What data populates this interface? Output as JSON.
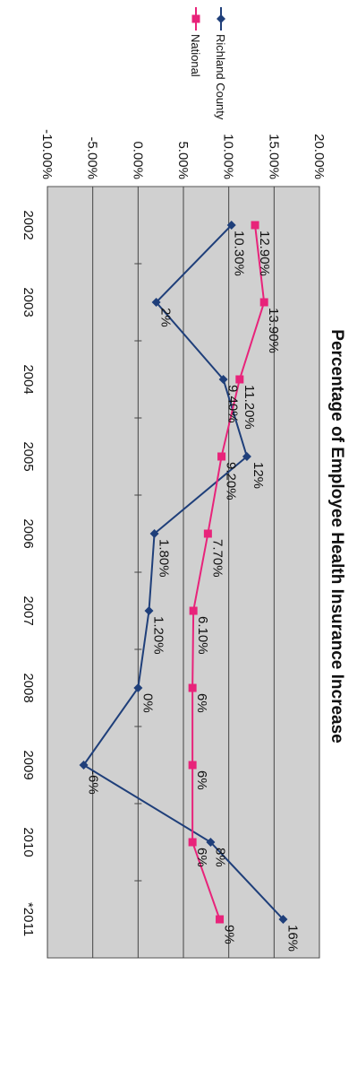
{
  "chart_data": {
    "type": "line",
    "title": "Percentage of Employee Health Insurance Increase",
    "categories": [
      "2002",
      "2003",
      "2004",
      "2005",
      "2006",
      "2007",
      "2008",
      "2009",
      "2010",
      "*2011"
    ],
    "ylim": [
      -10,
      20
    ],
    "yticks": [
      "-10.00%",
      "-5.00%",
      "0.00%",
      "5.00%",
      "10.00%",
      "15.00%",
      "20.00%"
    ],
    "grid": true,
    "legend_position": "right",
    "series": [
      {
        "name": "Richland County",
        "color": "#1f3f7a",
        "marker": "diamond",
        "values": [
          10.3,
          2,
          9.4,
          12,
          1.8,
          1.2,
          0,
          -6,
          8,
          16
        ],
        "labels": [
          "10.30%",
          "2%",
          "9.40%",
          "12%",
          "1.80%",
          "1.20%",
          "0%",
          "-6%",
          "8%",
          "16%"
        ]
      },
      {
        "name": "National",
        "color": "#e8237a",
        "marker": "square",
        "values": [
          12.9,
          13.9,
          11.2,
          9.2,
          7.7,
          6.1,
          6,
          6,
          6,
          9
        ],
        "labels": [
          "12.90%",
          "13.90%",
          "11.20%",
          "9.20%",
          "7.70%",
          "6.10%",
          "6%",
          "6%",
          "6%",
          "9%"
        ]
      }
    ]
  }
}
